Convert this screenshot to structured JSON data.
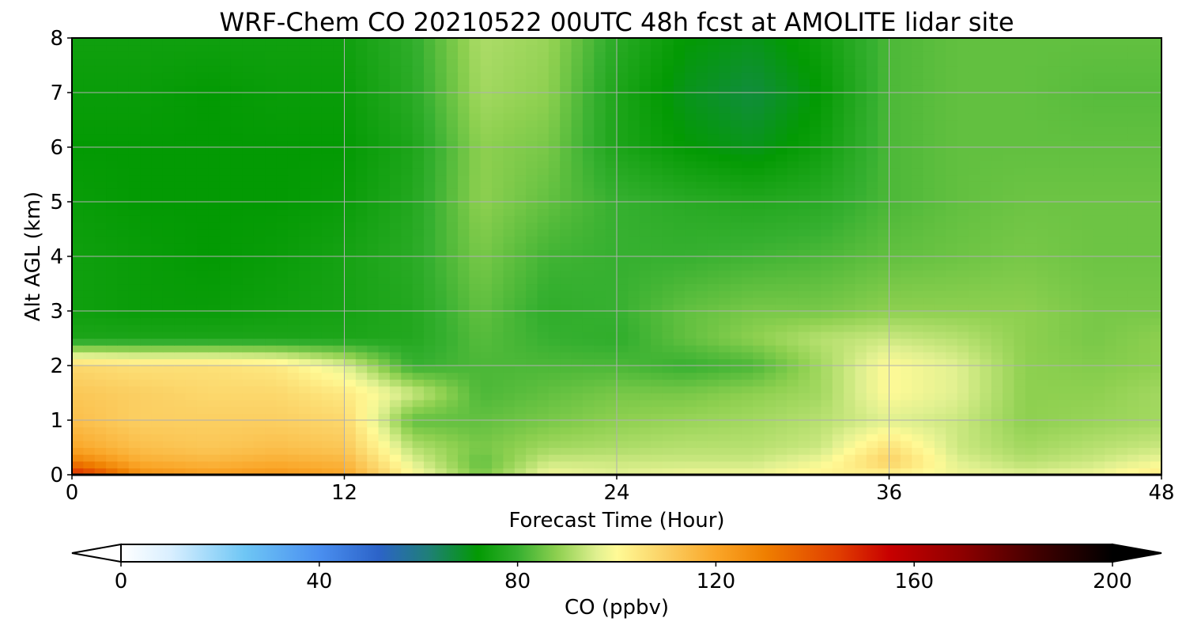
{
  "chart_data": {
    "type": "heatmap",
    "title": "WRF-Chem CO  20210522 00UTC 48h fcst at AMOLITE lidar site",
    "xlabel": "Forecast Time (Hour)",
    "ylabel": "Alt AGL (km)",
    "xlim": [
      0,
      48
    ],
    "ylim": [
      0,
      8
    ],
    "xticks": [
      0,
      12,
      24,
      36,
      48
    ],
    "yticks": [
      0,
      1,
      2,
      3,
      4,
      5,
      6,
      7,
      8
    ],
    "grid": true,
    "x": [
      0,
      3,
      6,
      9,
      12,
      15,
      18,
      21,
      24,
      27,
      30,
      33,
      36,
      39,
      42,
      45,
      48
    ],
    "y": [
      0,
      0.25,
      0.5,
      1,
      1.5,
      2,
      2.5,
      3,
      4,
      5,
      6,
      7,
      8
    ],
    "z": [
      [
        150,
        126,
        122,
        124,
        120,
        100,
        86,
        98,
        96,
        98,
        98,
        102,
        102,
        98,
        96,
        98,
        104
      ],
      [
        130,
        118,
        116,
        118,
        116,
        96,
        84,
        94,
        94,
        94,
        94,
        98,
        110,
        96,
        92,
        94,
        98
      ],
      [
        120,
        114,
        112,
        114,
        112,
        92,
        86,
        90,
        91,
        92,
        92,
        94,
        106,
        94,
        90,
        92,
        94
      ],
      [
        114,
        110,
        110,
        110,
        108,
        84,
        84,
        86,
        88,
        89,
        90,
        92,
        96,
        94,
        88,
        89,
        90
      ],
      [
        112,
        110,
        108,
        108,
        104,
        94,
        82,
        84,
        86,
        86,
        88,
        90,
        100,
        96,
        88,
        88,
        90
      ],
      [
        108,
        106,
        106,
        104,
        96,
        80,
        82,
        82,
        82,
        80,
        82,
        90,
        100,
        96,
        88,
        87,
        88
      ],
      [
        76,
        76,
        76,
        76,
        76,
        77,
        83,
        80,
        79,
        84,
        88,
        92,
        94,
        92,
        88,
        86,
        88
      ],
      [
        74,
        73,
        73,
        74,
        75,
        77,
        84,
        79,
        80,
        84,
        86,
        86,
        88,
        88,
        88,
        86,
        86
      ],
      [
        74,
        73,
        72,
        73,
        75,
        78,
        86,
        81,
        80,
        80,
        81,
        82,
        84,
        85,
        86,
        85,
        85
      ],
      [
        73,
        72,
        72,
        72,
        73,
        77,
        88,
        84,
        80,
        78,
        77,
        78,
        82,
        84,
        85,
        85,
        85
      ],
      [
        72,
        72,
        72,
        72,
        72,
        76,
        88,
        86,
        76,
        72,
        70,
        74,
        82,
        84,
        84,
        84,
        84
      ],
      [
        73,
        73,
        72,
        73,
        73,
        78,
        90,
        88,
        76,
        70,
        67,
        72,
        82,
        84,
        84,
        83,
        83
      ],
      [
        74,
        74,
        74,
        74,
        74,
        79,
        91,
        89,
        78,
        72,
        70,
        74,
        82,
        84,
        84,
        84,
        84
      ]
    ],
    "colorbar": {
      "label": "CO  (ppbv)",
      "min": 0,
      "max": 200,
      "ticks": [
        0,
        40,
        80,
        120,
        160,
        200
      ],
      "extend": "both",
      "stops": [
        [
          0,
          "#ffffff"
        ],
        [
          10,
          "#d9efff"
        ],
        [
          25,
          "#6ec6f5"
        ],
        [
          40,
          "#4a8ff0"
        ],
        [
          52,
          "#2c63c8"
        ],
        [
          62,
          "#1f7f78"
        ],
        [
          72,
          "#039a03"
        ],
        [
          80,
          "#36b030"
        ],
        [
          88,
          "#8ed050"
        ],
        [
          96,
          "#e0f090"
        ],
        [
          100,
          "#fffa96"
        ],
        [
          110,
          "#fbcf62"
        ],
        [
          120,
          "#faa628"
        ],
        [
          130,
          "#ef7f00"
        ],
        [
          145,
          "#e03c00"
        ],
        [
          155,
          "#c80000"
        ],
        [
          170,
          "#8c0000"
        ],
        [
          185,
          "#400000"
        ],
        [
          200,
          "#000000"
        ]
      ]
    }
  }
}
